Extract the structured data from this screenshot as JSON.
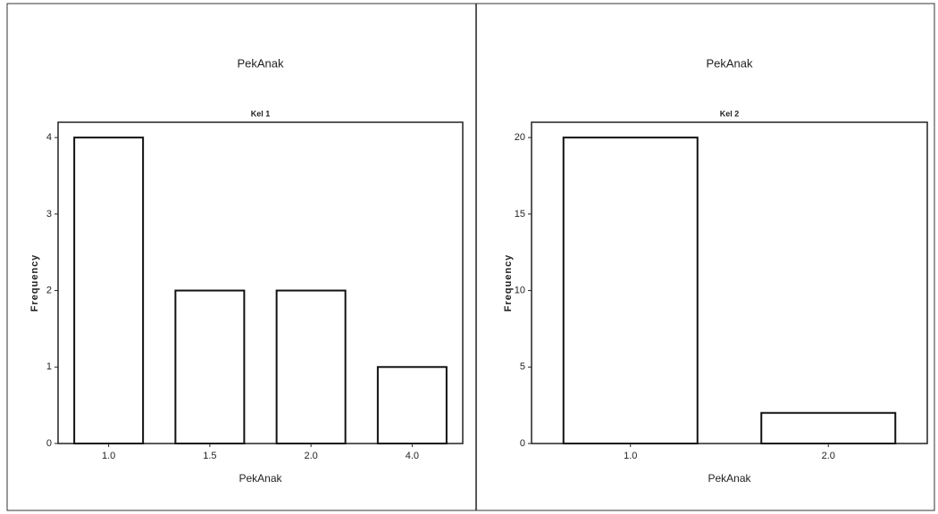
{
  "chart_data": [
    {
      "type": "bar",
      "title": "PekAnak",
      "subtitle": "Kel 1",
      "x_label": "PekAnak",
      "y_label": "Frequency",
      "categories": [
        "1.0",
        "1.5",
        "2.0",
        "4.0"
      ],
      "values": [
        4,
        2,
        2,
        1
      ],
      "color": "#ffffff",
      "ylim": [
        0,
        4.2
      ],
      "yticks": [
        0,
        1,
        2,
        3,
        4
      ]
    },
    {
      "type": "bar",
      "title": "PekAnak",
      "subtitle": "Kel 2",
      "x_label": "PekAnak",
      "y_label": "Frequency",
      "categories": [
        "1.0",
        "2.0"
      ],
      "values": [
        20,
        2
      ],
      "color": "#ffffff",
      "ylim": [
        0,
        21
      ],
      "yticks": [
        0,
        5,
        10,
        15,
        20
      ]
    }
  ]
}
